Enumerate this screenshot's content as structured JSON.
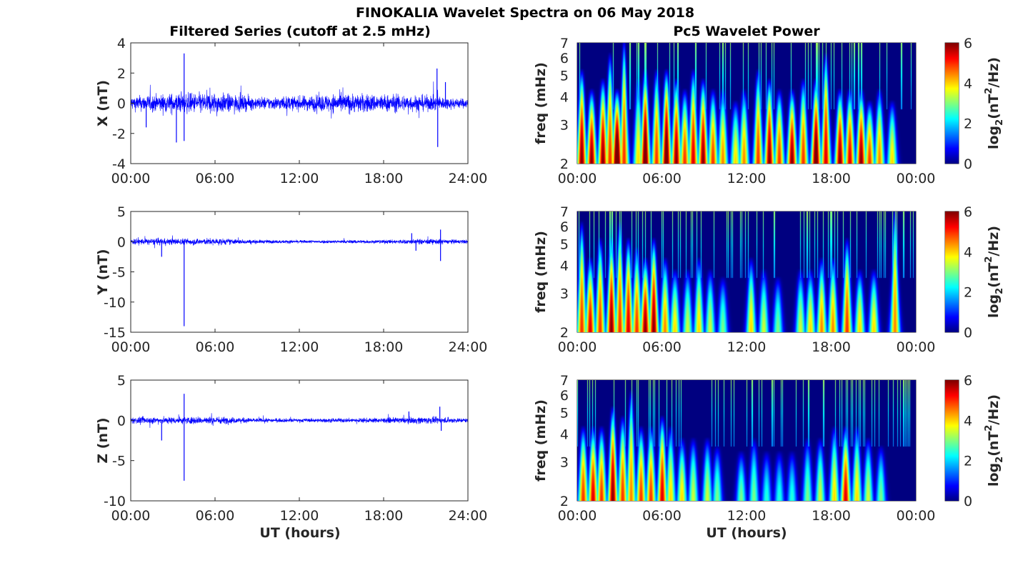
{
  "figure_title": "FINOKALIA Wavelet Spectra on 06 May 2018",
  "left_title": "Filtered Series (cutoff at 2.5 mHz)",
  "right_title": "Pc5 Wavelet Power",
  "xlabel": "UT (hours)",
  "colorbar": {
    "label_parts": [
      "log",
      "2",
      "(nT",
      "2",
      "/Hz)"
    ],
    "ticks": [
      "0",
      "2",
      "4",
      "6"
    ],
    "clim": [
      0,
      6
    ]
  },
  "chart_data": [
    {
      "type": "line",
      "ylabel": "X (nT)",
      "xlim": [
        0,
        24
      ],
      "ylim": [
        -4,
        4
      ],
      "yticks": [
        "-4",
        "-2",
        "0",
        "2",
        "4"
      ],
      "xticks": [
        "00:00",
        "06:00",
        "12:00",
        "18:00",
        "24:00"
      ],
      "color": "#0000ff",
      "noise_amplitude": 0.4,
      "envelope": [
        [
          0,
          0.8
        ],
        [
          3,
          1.1
        ],
        [
          6,
          1.2
        ],
        [
          9,
          0.7
        ],
        [
          12,
          0.8
        ],
        [
          15,
          1.1
        ],
        [
          18,
          1.0
        ],
        [
          21,
          0.9
        ],
        [
          24,
          0.5
        ]
      ],
      "spikes": [
        [
          3.25,
          -2.6
        ],
        [
          3.8,
          3.3
        ],
        [
          3.8,
          -2.5
        ],
        [
          21.8,
          2.3
        ],
        [
          21.85,
          -2.9
        ],
        [
          1.1,
          -1.6
        ],
        [
          22.4,
          1.4
        ]
      ]
    },
    {
      "type": "line",
      "ylabel": "Y (nT)",
      "xlim": [
        0,
        24
      ],
      "ylim": [
        -15,
        5
      ],
      "yticks": [
        "-15",
        "-10",
        "-5",
        "0",
        "5"
      ],
      "xticks": [
        "00:00",
        "06:00",
        "12:00",
        "18:00",
        "24:00"
      ],
      "color": "#0000ff",
      "noise_amplitude": 0.35,
      "envelope": [
        [
          0,
          1.0
        ],
        [
          6,
          1.1
        ],
        [
          9,
          0.6
        ],
        [
          12,
          0.5
        ],
        [
          18,
          0.6
        ],
        [
          21,
          0.9
        ],
        [
          24,
          0.6
        ]
      ],
      "spikes": [
        [
          3.8,
          -14.0
        ],
        [
          2.2,
          -2.5
        ],
        [
          20,
          1.4
        ],
        [
          22.05,
          2.0
        ],
        [
          22.05,
          -3.2
        ],
        [
          20.3,
          -1.5
        ]
      ]
    },
    {
      "type": "line",
      "ylabel": "Z (nT)",
      "xlim": [
        0,
        24
      ],
      "ylim": [
        -10,
        5
      ],
      "yticks": [
        "-10",
        "-5",
        "0",
        "5"
      ],
      "xticks": [
        "00:00",
        "06:00",
        "12:00",
        "18:00",
        "24:00"
      ],
      "color": "#0000ff",
      "noise_amplitude": 0.3,
      "envelope": [
        [
          0,
          0.9
        ],
        [
          6,
          1.1
        ],
        [
          9,
          0.6
        ],
        [
          12,
          0.5
        ],
        [
          18,
          0.7
        ],
        [
          21,
          1.0
        ],
        [
          24,
          0.6
        ]
      ],
      "spikes": [
        [
          3.8,
          3.3
        ],
        [
          3.8,
          -7.5
        ],
        [
          2.2,
          -2.5
        ],
        [
          22,
          1.7
        ],
        [
          19.8,
          1.1
        ],
        [
          22.1,
          -1.3
        ]
      ]
    },
    {
      "type": "heatmap",
      "ylabel": "freq (mHz)",
      "yscale": "log",
      "ylim": [
        2,
        7
      ],
      "yticks": [
        "2",
        "3",
        "4",
        "5",
        "6",
        "7"
      ],
      "xlim": [
        0,
        24
      ],
      "xticks": [
        "00:00",
        "06:00",
        "12:00",
        "18:00",
        "00:00"
      ],
      "clim": [
        0,
        6
      ],
      "bursts": [
        [
          0.3,
          6,
          5
        ],
        [
          1.0,
          6,
          4
        ],
        [
          1.8,
          6,
          4.5
        ],
        [
          2.3,
          5,
          6
        ],
        [
          2.8,
          7,
          4
        ],
        [
          3.3,
          5,
          7
        ],
        [
          4.3,
          4,
          4.5
        ],
        [
          4.8,
          6.5,
          5
        ],
        [
          5.6,
          5,
          5
        ],
        [
          6.3,
          6.5,
          5
        ],
        [
          7.0,
          6,
          4.5
        ],
        [
          7.6,
          5,
          4
        ],
        [
          8.2,
          5.5,
          5
        ],
        [
          8.9,
          6,
          4.5
        ],
        [
          9.6,
          5,
          4
        ],
        [
          10.3,
          4.5,
          4
        ],
        [
          11.2,
          4,
          3.5
        ],
        [
          11.8,
          4.5,
          4
        ],
        [
          12.8,
          5,
          5
        ],
        [
          13.6,
          6,
          4.5
        ],
        [
          14.3,
          5,
          4
        ],
        [
          15.2,
          6,
          4
        ],
        [
          16.0,
          5,
          4.5
        ],
        [
          16.9,
          6.5,
          4.5
        ],
        [
          17.6,
          5.5,
          6
        ],
        [
          18.6,
          6,
          4
        ],
        [
          19.3,
          5.5,
          4
        ],
        [
          20.1,
          6,
          4
        ],
        [
          20.7,
          5,
          3.5
        ],
        [
          21.4,
          4.5,
          4
        ],
        [
          22.3,
          4,
          3.5
        ]
      ]
    },
    {
      "type": "heatmap",
      "ylabel": "freq (mHz)",
      "yscale": "log",
      "ylim": [
        2,
        7
      ],
      "yticks": [
        "2",
        "3",
        "4",
        "5",
        "6",
        "7"
      ],
      "xlim": [
        0,
        24
      ],
      "xticks": [
        "00:00",
        "06:00",
        "12:00",
        "18:00",
        "00:00"
      ],
      "clim": [
        0,
        6
      ],
      "bursts": [
        [
          0.3,
          5,
          6
        ],
        [
          0.9,
          5.5,
          4
        ],
        [
          1.6,
          5,
          5
        ],
        [
          2.4,
          6,
          5
        ],
        [
          3.0,
          5,
          6
        ],
        [
          3.6,
          5.5,
          5
        ],
        [
          4.2,
          5,
          4.5
        ],
        [
          4.8,
          6,
          4
        ],
        [
          5.4,
          6,
          5
        ],
        [
          6.2,
          4.5,
          4
        ],
        [
          6.9,
          4,
          3.5
        ],
        [
          7.8,
          3.5,
          3.5
        ],
        [
          8.6,
          4,
          4
        ],
        [
          9.4,
          3.5,
          3.5
        ],
        [
          10.3,
          3,
          3.2
        ],
        [
          12.3,
          4,
          4
        ],
        [
          13.2,
          3.5,
          3.5
        ],
        [
          14.2,
          3,
          3.2
        ],
        [
          15.8,
          3.5,
          3.5
        ],
        [
          16.5,
          4,
          3.5
        ],
        [
          17.3,
          4.5,
          4
        ],
        [
          18.1,
          4.5,
          4
        ],
        [
          19.1,
          5,
          5
        ],
        [
          20.0,
          4,
          3.5
        ],
        [
          21.0,
          4,
          3.5
        ],
        [
          22.5,
          4.5,
          7
        ]
      ]
    },
    {
      "type": "heatmap",
      "ylabel": "freq (mHz)",
      "yscale": "log",
      "ylim": [
        2,
        7
      ],
      "yticks": [
        "2",
        "3",
        "4",
        "5",
        "6",
        "7"
      ],
      "xlim": [
        0,
        24
      ],
      "xticks": [
        "00:00",
        "06:00",
        "12:00",
        "18:00",
        "00:00"
      ],
      "clim": [
        0,
        6
      ],
      "bursts": [
        [
          0.4,
          5,
          4
        ],
        [
          1.1,
          5.5,
          4
        ],
        [
          1.7,
          5,
          4
        ],
        [
          2.5,
          6,
          5
        ],
        [
          3.2,
          5,
          4.5
        ],
        [
          3.8,
          4.5,
          6
        ],
        [
          4.5,
          5,
          4
        ],
        [
          5.2,
          5,
          4
        ],
        [
          6.0,
          5.5,
          4.5
        ],
        [
          6.6,
          4,
          4
        ],
        [
          7.4,
          4,
          3.5
        ],
        [
          8.2,
          3.5,
          3.5
        ],
        [
          9.2,
          3.5,
          3.5
        ],
        [
          9.9,
          3,
          3.2
        ],
        [
          11.6,
          3,
          3
        ],
        [
          12.5,
          3,
          3.5
        ],
        [
          13.4,
          2.5,
          3
        ],
        [
          14.3,
          2.5,
          3
        ],
        [
          15.2,
          2.5,
          3
        ],
        [
          16.3,
          3,
          3.5
        ],
        [
          17.2,
          3.5,
          3.5
        ],
        [
          18.2,
          4,
          4
        ],
        [
          19.0,
          5.5,
          4
        ],
        [
          19.8,
          4,
          4
        ],
        [
          20.6,
          3.5,
          3.5
        ],
        [
          21.5,
          3,
          3.2
        ]
      ]
    }
  ]
}
